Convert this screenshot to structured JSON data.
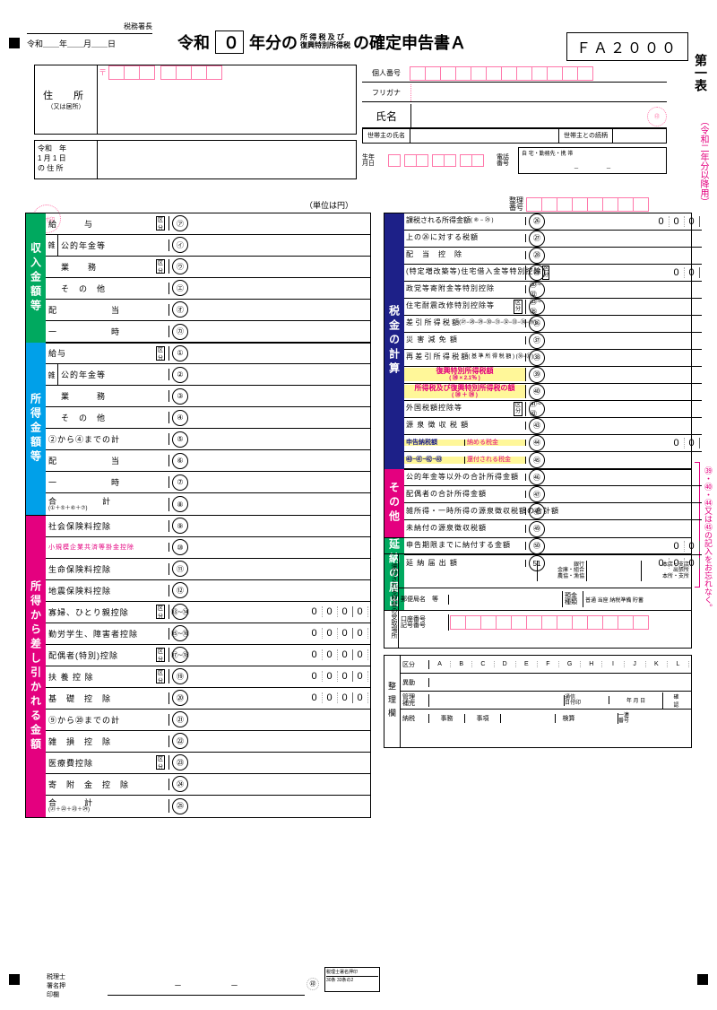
{
  "form_code": "ＦＡ２０００",
  "hdr": {
    "office": "税務署長",
    "date_fmt": "令和＿＿年＿＿月＿＿日",
    "era": "令和",
    "era_num": "０",
    "title_rest": "年分の",
    "title_sub1": "所 得 税 及 び",
    "title_sub2": "復興特別所得税",
    "title_end": "の確定申告書Ａ"
  },
  "side": {
    "table1": "第一表",
    "note": "（令和二年分以降用）",
    "warn": "㊴・㊵・㊹又は㊺の記入をお忘れなく。"
  },
  "addr": {
    "lbl": "住　所",
    "sub": "（又は居所）",
    "lbl2a": "令和　年",
    "lbl2b": "1 月 1 日",
    "lbl2c": "の 住 所",
    "post": "〒"
  },
  "rtop": {
    "r1": "個人番号",
    "r2": "フリガナ",
    "r3": "氏名",
    "r4a": "世帯主の氏名",
    "r4b": "世帯主との続柄",
    "r5a": "生年",
    "r5b": "月日",
    "r6a": "電話",
    "r6b": "番号",
    "r6c": "自 宅・勤務先・携 帯"
  },
  "unit": "（単位は円）",
  "sort": "整理\n番号",
  "secL1": {
    "title": "収入金額等",
    "rows": [
      {
        "a": "給　　　与",
        "k": "区分",
        "c": "㋐"
      },
      {
        "sub": "雑",
        "a": "公的年金等",
        "c": "㋑"
      },
      {
        "a": "業　　務",
        "k": "区分",
        "c": "㋒"
      },
      {
        "a": "そ　の　他",
        "c": "㋓"
      },
      {
        "a": "配　　　　　　当",
        "c": "㋔"
      },
      {
        "a": "一　　　　　　時",
        "c": "㋕"
      }
    ]
  },
  "secL2": {
    "title": "所得金額等",
    "rows": [
      {
        "a": "給与",
        "k": "区分",
        "c": "①"
      },
      {
        "sub": "雑",
        "a": "公的年金等",
        "c": "②"
      },
      {
        "a": "業　　　務",
        "c": "③"
      },
      {
        "a": "そ　の　他",
        "c": "④"
      },
      {
        "a": "②から④までの計",
        "c": "⑤"
      },
      {
        "a": "配　　　　　　当",
        "c": "⑥"
      },
      {
        "a": "一　　　　　　時",
        "c": "⑦"
      },
      {
        "a": "合　　　　　計",
        "s": "(①＋⑤＋⑥＋⑦)",
        "c": "⑧"
      }
    ]
  },
  "secL3": {
    "title": "所得から差し引かれる金額",
    "rows": [
      {
        "a": "社会保険料控除",
        "c": "⑨"
      },
      {
        "a": "小規模企業共済等掛金控除",
        "c": "⑩",
        "hl": true,
        "color": "#e4007f"
      },
      {
        "a": "生命保険料控除",
        "c": "⑪"
      },
      {
        "a": "地震保険料控除",
        "c": "⑫"
      },
      {
        "a": "寡婦、ひとり親控除",
        "k": "区分",
        "c": "⑬~⑭",
        "z": "0000"
      },
      {
        "a": "勤労学生、障害者控除",
        "c": "⑮~⑯",
        "z": "0000"
      },
      {
        "a": "配偶者(特別)控除",
        "k": "区分1 区分2",
        "c": "⑰~⑱",
        "z": "0000"
      },
      {
        "a": "扶 養 控 除",
        "k": "区分",
        "c": "⑲",
        "z": "0000"
      },
      {
        "a": "基　礎　控　除",
        "c": "⑳",
        "z": "0000"
      },
      {
        "a": "⑨から⑳までの計",
        "c": "㉑"
      },
      {
        "a": "雑　損　控　除",
        "c": "㉒"
      },
      {
        "a": "医療費控除",
        "k": "区分",
        "c": "㉓"
      },
      {
        "a": "寄　附　金　控　除",
        "c": "㉔"
      },
      {
        "a": "合　　　計",
        "s": "(㉑＋㉒＋㉓＋㉔)",
        "c": "㉕"
      }
    ]
  },
  "secR1": {
    "title": "税金の計算",
    "rows": [
      {
        "a": "課税される所得金額",
        "s": "( ⑧ − ㉕ )",
        "c": "㉖",
        "z": "000"
      },
      {
        "a": "上の㉖に対する税額",
        "c": "㉗"
      },
      {
        "a": "配　当　控　除",
        "c": "㉘"
      },
      {
        "a": "(特定増改築等)住宅借入金等特別控除",
        "k": "区分1 区分2",
        "c": "㉙",
        "z": "00"
      },
      {
        "a": "政党等寄附金等特別控除",
        "c": "㉚~㉜"
      },
      {
        "a": "住宅耐震改修特別控除等",
        "k": "区分",
        "c": "㉝~㉟"
      },
      {
        "a": "差 引 所 得 税 額",
        "s": "(㉗−㉘−㉙−㉚−㉛−㉜−㉝−㉞−㉟)",
        "c": "㊱"
      },
      {
        "a": "災 害 減 免 額",
        "c": "㊲"
      },
      {
        "a": "再 差 引 所 得 税 額",
        "s": "( 基 準 所 得 税 額 ) (㊱−㊲)",
        "c": "㊳"
      },
      {
        "a": "復興特別所得税額",
        "s": "( ㊳ × 2.1％ )",
        "c": "㊴",
        "hl": true
      },
      {
        "a": "所得税及び復興特別所得税の額",
        "s": "( ㊳ ＋ ㊴ )",
        "c": "㊵",
        "hl": true
      },
      {
        "a": "外国税額控除等",
        "k": "区分",
        "c": "㊶~㊷"
      },
      {
        "a": "源 泉 徴 収 税 額",
        "c": "㊸"
      },
      {
        "a": "申告納税額",
        "s2": "納める税金",
        "c": "㊹",
        "z": "00",
        "hl2": true
      },
      {
        "a": "㊵−㊶−㊷−㊸",
        "s2": "還付される税金",
        "c": "㊺",
        "hl2": true
      }
    ]
  },
  "secR2": {
    "title": "その他",
    "rows": [
      {
        "a": "公的年金等以外の合計所得金額",
        "c": "㊻"
      },
      {
        "a": "配偶者の合計所得金額",
        "c": "㊼"
      },
      {
        "a": "雑所得・一時所得の源泉徴収税額の合計額",
        "c": "㊽"
      },
      {
        "a": "未納付の源泉徴収税額",
        "c": "㊾"
      }
    ]
  },
  "secR3": {
    "title": "延納の届出",
    "rows": [
      {
        "a": "申告期限までに納付する金額",
        "c": "㊿",
        "z": "00"
      },
      {
        "a": "延 納 届 出 額",
        "c": "51",
        "z": "000"
      }
    ]
  },
  "refund": {
    "vlbl": "還付される税金の受取場所",
    "r1a": "銀行\n金庫・組合\n農協・漁協",
    "r1b": "本店・支店\n出張所\n本所・支所",
    "r2a": "郵便局名　等",
    "r2b": "預金種類",
    "r2c": "普通 当座 納税準備 貯蓄",
    "r3": "口座番号\n記号番号"
  },
  "bgrid": {
    "vlbl": "整理欄",
    "cols": "A B C D E F G H I J K L",
    "rows": [
      "区分",
      "異動",
      "管理補完",
      "納税"
    ],
    "mid": [
      "通信日付印",
      "年月日",
      "確認"
    ],
    "bot": [
      "事務",
      "事項",
      "検算",
      "一連番号"
    ]
  },
  "footer": {
    "a": "税理士署名押印",
    "b": "30条 33条の2",
    "l1": "税理士",
    "l2": "署名押",
    "l3": "印欄"
  }
}
